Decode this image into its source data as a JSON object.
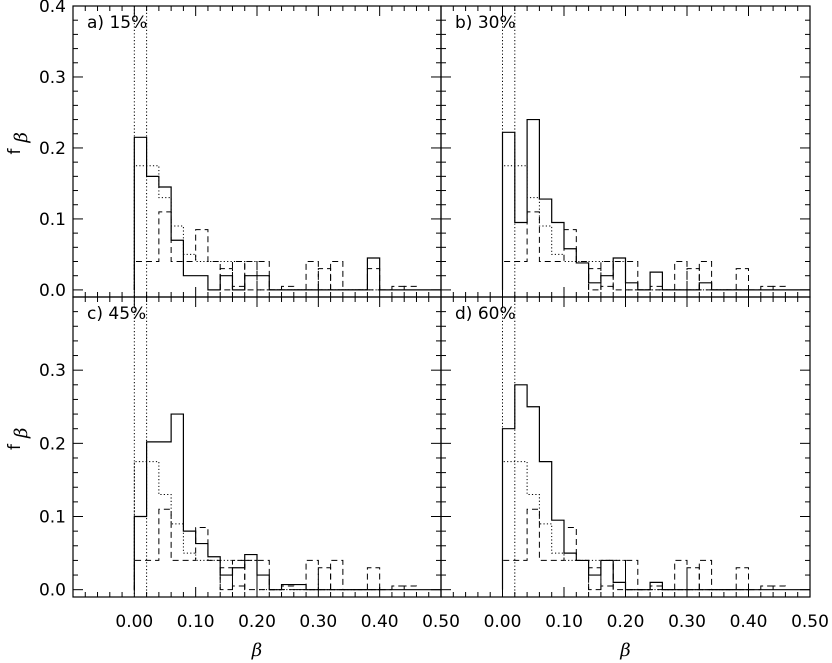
{
  "chart_data": {
    "type": "histogram-grid",
    "xlabel": "β",
    "ylabel_main": "f",
    "ylabel_sub": "β",
    "xlim": [
      -0.1,
      0.5
    ],
    "ylim": [
      -0.01,
      0.4
    ],
    "x_ticks": [
      0.0,
      0.1,
      0.2,
      0.3,
      0.4,
      0.5
    ],
    "x_tick_labels": [
      "0.00",
      "0.10",
      "0.20",
      "0.30",
      "0.40",
      "0.50"
    ],
    "y_ticks": [
      0.0,
      0.1,
      0.2,
      0.3,
      0.4
    ],
    "y_tick_labels_top": [
      "0.0",
      "0.1",
      "0.2",
      "0.3",
      "0.4"
    ],
    "y_tick_labels_bottom": [
      "0.0",
      "0.1",
      "0.2",
      "0.3"
    ],
    "bin_width": 0.02,
    "bin_start": 0.0,
    "vertical_lines": [
      0.0,
      0.02
    ],
    "reference_dotted": [
      0.175,
      0.175,
      0.13,
      0.09,
      0.05,
      0.04,
      0.04,
      0.04,
      0.04,
      0.04,
      0.0,
      0.0,
      0.0,
      0.0,
      0.0,
      0.0,
      0.0,
      0.0,
      0.0,
      0.0
    ],
    "reference_dashed": [
      0.04,
      0.04,
      0.11,
      0.04,
      0.04,
      0.085,
      0.04,
      0.0,
      0.04,
      0.0,
      0.0,
      0.0,
      0.0,
      0.0,
      0.0,
      0.0,
      0.0,
      0.0,
      0.0,
      0.0
    ],
    "reference_dashed_tail": [
      {
        "x0": 0.14,
        "x1": 0.16,
        "y": 0.03
      },
      {
        "x0": 0.16,
        "x1": 0.18,
        "y": 0.005
      },
      {
        "x0": 0.18,
        "x1": 0.2,
        "y": 0.04
      },
      {
        "x0": 0.2,
        "x1": 0.22,
        "y": 0.04
      },
      {
        "x0": 0.22,
        "x1": 0.24,
        "y": 0.0
      },
      {
        "x0": 0.24,
        "x1": 0.26,
        "y": 0.005
      },
      {
        "x0": 0.26,
        "x1": 0.28,
        "y": 0.0
      },
      {
        "x0": 0.28,
        "x1": 0.3,
        "y": 0.04
      },
      {
        "x0": 0.3,
        "x1": 0.32,
        "y": 0.03
      },
      {
        "x0": 0.32,
        "x1": 0.34,
        "y": 0.04
      },
      {
        "x0": 0.34,
        "x1": 0.36,
        "y": 0.0
      },
      {
        "x0": 0.36,
        "x1": 0.38,
        "y": 0.0
      },
      {
        "x0": 0.38,
        "x1": 0.4,
        "y": 0.03
      },
      {
        "x0": 0.4,
        "x1": 0.42,
        "y": 0.0
      },
      {
        "x0": 0.42,
        "x1": 0.44,
        "y": 0.005
      },
      {
        "x0": 0.44,
        "x1": 0.46,
        "y": 0.005
      }
    ],
    "panels": [
      {
        "label": "a)  15%",
        "solid": [
          0.215,
          0.16,
          0.145,
          0.07,
          0.02,
          0.02,
          0.0,
          0.02,
          0.0,
          0.02,
          0.02,
          0.0,
          0.0,
          0.0,
          0.0,
          0.0,
          0.0,
          0.0,
          0.0,
          0.045,
          0.0,
          0.0,
          0.0,
          0.0,
          0.0
        ]
      },
      {
        "label": "b)  30%",
        "solid": [
          0.222,
          0.095,
          0.24,
          0.128,
          0.095,
          0.058,
          0.038,
          0.01,
          0.02,
          0.045,
          0.01,
          0.0,
          0.025,
          0.0,
          0.0,
          0.0,
          0.01,
          0.0,
          0.0,
          0.0,
          0.0,
          0.0,
          0.0,
          0.0,
          0.0
        ]
      },
      {
        "label": "c)  45%",
        "solid": [
          0.1,
          0.202,
          0.202,
          0.24,
          0.08,
          0.063,
          0.045,
          0.02,
          0.03,
          0.048,
          0.02,
          0.0,
          0.007,
          0.007,
          0.0,
          0.0,
          0.0,
          0.0,
          0.0,
          0.0,
          0.0,
          0.0,
          0.0,
          0.0,
          0.0
        ]
      },
      {
        "label": "d)  60%",
        "solid": [
          0.22,
          0.28,
          0.25,
          0.175,
          0.095,
          0.05,
          0.04,
          0.02,
          0.04,
          0.01,
          0.0,
          0.0,
          0.01,
          0.0,
          0.0,
          0.0,
          0.0,
          0.0,
          0.0,
          0.0,
          0.0,
          0.0,
          0.0,
          0.0,
          0.0
        ]
      }
    ]
  }
}
